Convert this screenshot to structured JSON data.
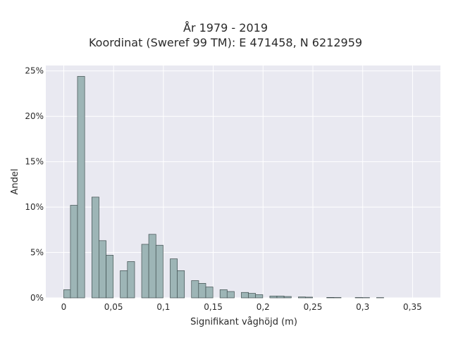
{
  "chart_data": {
    "type": "bar",
    "title_line1": "År 1979 - 2019",
    "title_line2": "Koordinat (Sweref 99 TM): E 471458, N 6212959",
    "xlabel": "Signifikant våghöjd (m)",
    "ylabel": "Andel",
    "xlim": [
      -0.018,
      0.378
    ],
    "ylim": [
      0,
      25.6
    ],
    "x_ticks": [
      0,
      0.05,
      0.1,
      0.15,
      0.2,
      0.25,
      0.3,
      0.35
    ],
    "x_tick_labels": [
      "0",
      "0,05",
      "0,1",
      "0,15",
      "0,2",
      "0,25",
      "0,3",
      "0,35"
    ],
    "y_ticks": [
      0,
      5,
      10,
      15,
      20,
      25
    ],
    "y_tick_labels": [
      "0%",
      "5%",
      "10%",
      "15%",
      "20%",
      "25%"
    ],
    "grid": true,
    "bin_width": 0.0072,
    "bins": [
      {
        "x": 0.0036,
        "value": 0.9
      },
      {
        "x": 0.0103,
        "value": 10.2
      },
      {
        "x": 0.0174,
        "value": 24.4
      },
      {
        "x": 0.0318,
        "value": 11.1
      },
      {
        "x": 0.0389,
        "value": 6.3
      },
      {
        "x": 0.0461,
        "value": 4.7
      },
      {
        "x": 0.0603,
        "value": 3.0
      },
      {
        "x": 0.0675,
        "value": 4.0
      },
      {
        "x": 0.0818,
        "value": 5.9
      },
      {
        "x": 0.0889,
        "value": 7.0
      },
      {
        "x": 0.0961,
        "value": 5.8
      },
      {
        "x": 0.1104,
        "value": 4.3
      },
      {
        "x": 0.1175,
        "value": 3.0
      },
      {
        "x": 0.1318,
        "value": 1.9
      },
      {
        "x": 0.1389,
        "value": 1.6
      },
      {
        "x": 0.1461,
        "value": 1.2
      },
      {
        "x": 0.1604,
        "value": 0.9
      },
      {
        "x": 0.1675,
        "value": 0.7
      },
      {
        "x": 0.1818,
        "value": 0.6
      },
      {
        "x": 0.1889,
        "value": 0.5
      },
      {
        "x": 0.1961,
        "value": 0.35
      },
      {
        "x": 0.2104,
        "value": 0.2
      },
      {
        "x": 0.2175,
        "value": 0.2
      },
      {
        "x": 0.2247,
        "value": 0.15
      },
      {
        "x": 0.239,
        "value": 0.1
      },
      {
        "x": 0.2461,
        "value": 0.08
      },
      {
        "x": 0.2675,
        "value": 0.05
      },
      {
        "x": 0.2747,
        "value": 0.04
      },
      {
        "x": 0.2961,
        "value": 0.04
      },
      {
        "x": 0.3033,
        "value": 0.03
      },
      {
        "x": 0.3175,
        "value": 0.03
      }
    ],
    "bar_color": "#9db5b6",
    "bar_edge_color": "#3f4e4f",
    "plot_background": "#e9e9f1",
    "grid_color": "#ffffff"
  }
}
